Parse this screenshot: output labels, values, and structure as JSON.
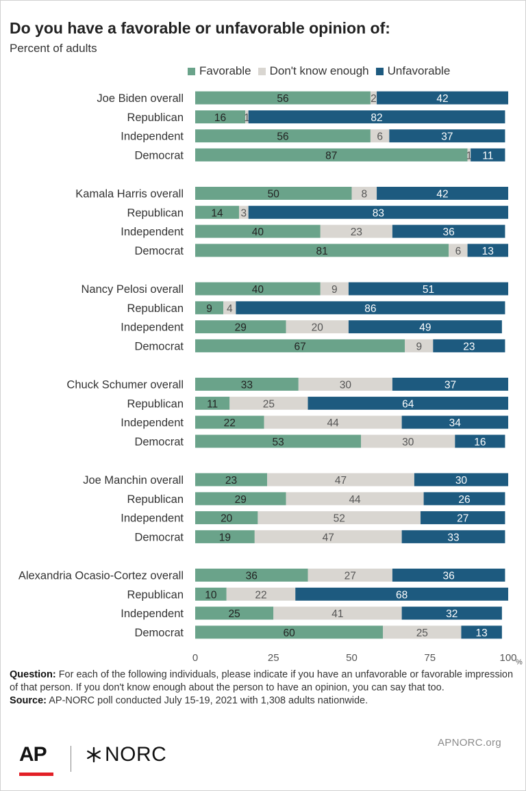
{
  "title": "Do you have a favorable or unfavorable opinion of:",
  "subtitle": "Percent of adults",
  "legend": [
    {
      "label": "Favorable",
      "color": "#6aa38a"
    },
    {
      "label": "Don't know enough",
      "color": "#d9d6d1"
    },
    {
      "label": "Unfavorable",
      "color": "#1d5a7f"
    }
  ],
  "chart_data": {
    "type": "bar",
    "orientation": "horizontal-stacked",
    "categories": [
      "Joe Biden overall",
      "Republican",
      "Independent",
      "Democrat",
      "Kamala Harris overall",
      "Republican",
      "Independent",
      "Democrat",
      "Nancy Pelosi overall",
      "Republican",
      "Independent",
      "Democrat",
      "Chuck Schumer overall",
      "Republican",
      "Independent",
      "Democrat",
      "Joe Manchin overall",
      "Republican",
      "Independent",
      "Democrat",
      "Alexandria Ocasio-Cortez overall",
      "Republican",
      "Independent",
      "Democrat"
    ],
    "series": [
      {
        "name": "Favorable",
        "values": [
          56,
          16,
          56,
          87,
          50,
          14,
          40,
          81,
          40,
          9,
          29,
          67,
          33,
          11,
          22,
          53,
          23,
          29,
          20,
          19,
          36,
          10,
          25,
          60
        ]
      },
      {
        "name": "Don't know enough",
        "values": [
          2,
          1,
          6,
          1,
          8,
          3,
          23,
          6,
          9,
          4,
          20,
          9,
          30,
          25,
          44,
          30,
          47,
          44,
          52,
          47,
          27,
          22,
          41,
          25
        ]
      },
      {
        "name": "Unfavorable",
        "values": [
          42,
          82,
          37,
          11,
          42,
          83,
          36,
          13,
          51,
          86,
          49,
          23,
          37,
          64,
          34,
          16,
          30,
          26,
          27,
          33,
          36,
          68,
          32,
          13
        ]
      }
    ],
    "xlim": [
      0,
      100
    ],
    "xticks": [
      "0",
      "25",
      "50",
      "75",
      "100"
    ],
    "x_unit": "%",
    "legend_position": "top"
  },
  "notes": {
    "question_label": "Question:",
    "question_text": "For each of the following individuals, please indicate if you have an unfavorable or favorable impression of that person. If you don't know enough about the person to have an opinion, you can say that too.",
    "source_label": "Source:",
    "source_text": "AP-NORC poll conducted July 15-19, 2021 with 1,308 adults nationwide."
  },
  "footer": {
    "url": "APNORC.org",
    "ap_logo": "AP",
    "norc_logo": "NORC"
  }
}
